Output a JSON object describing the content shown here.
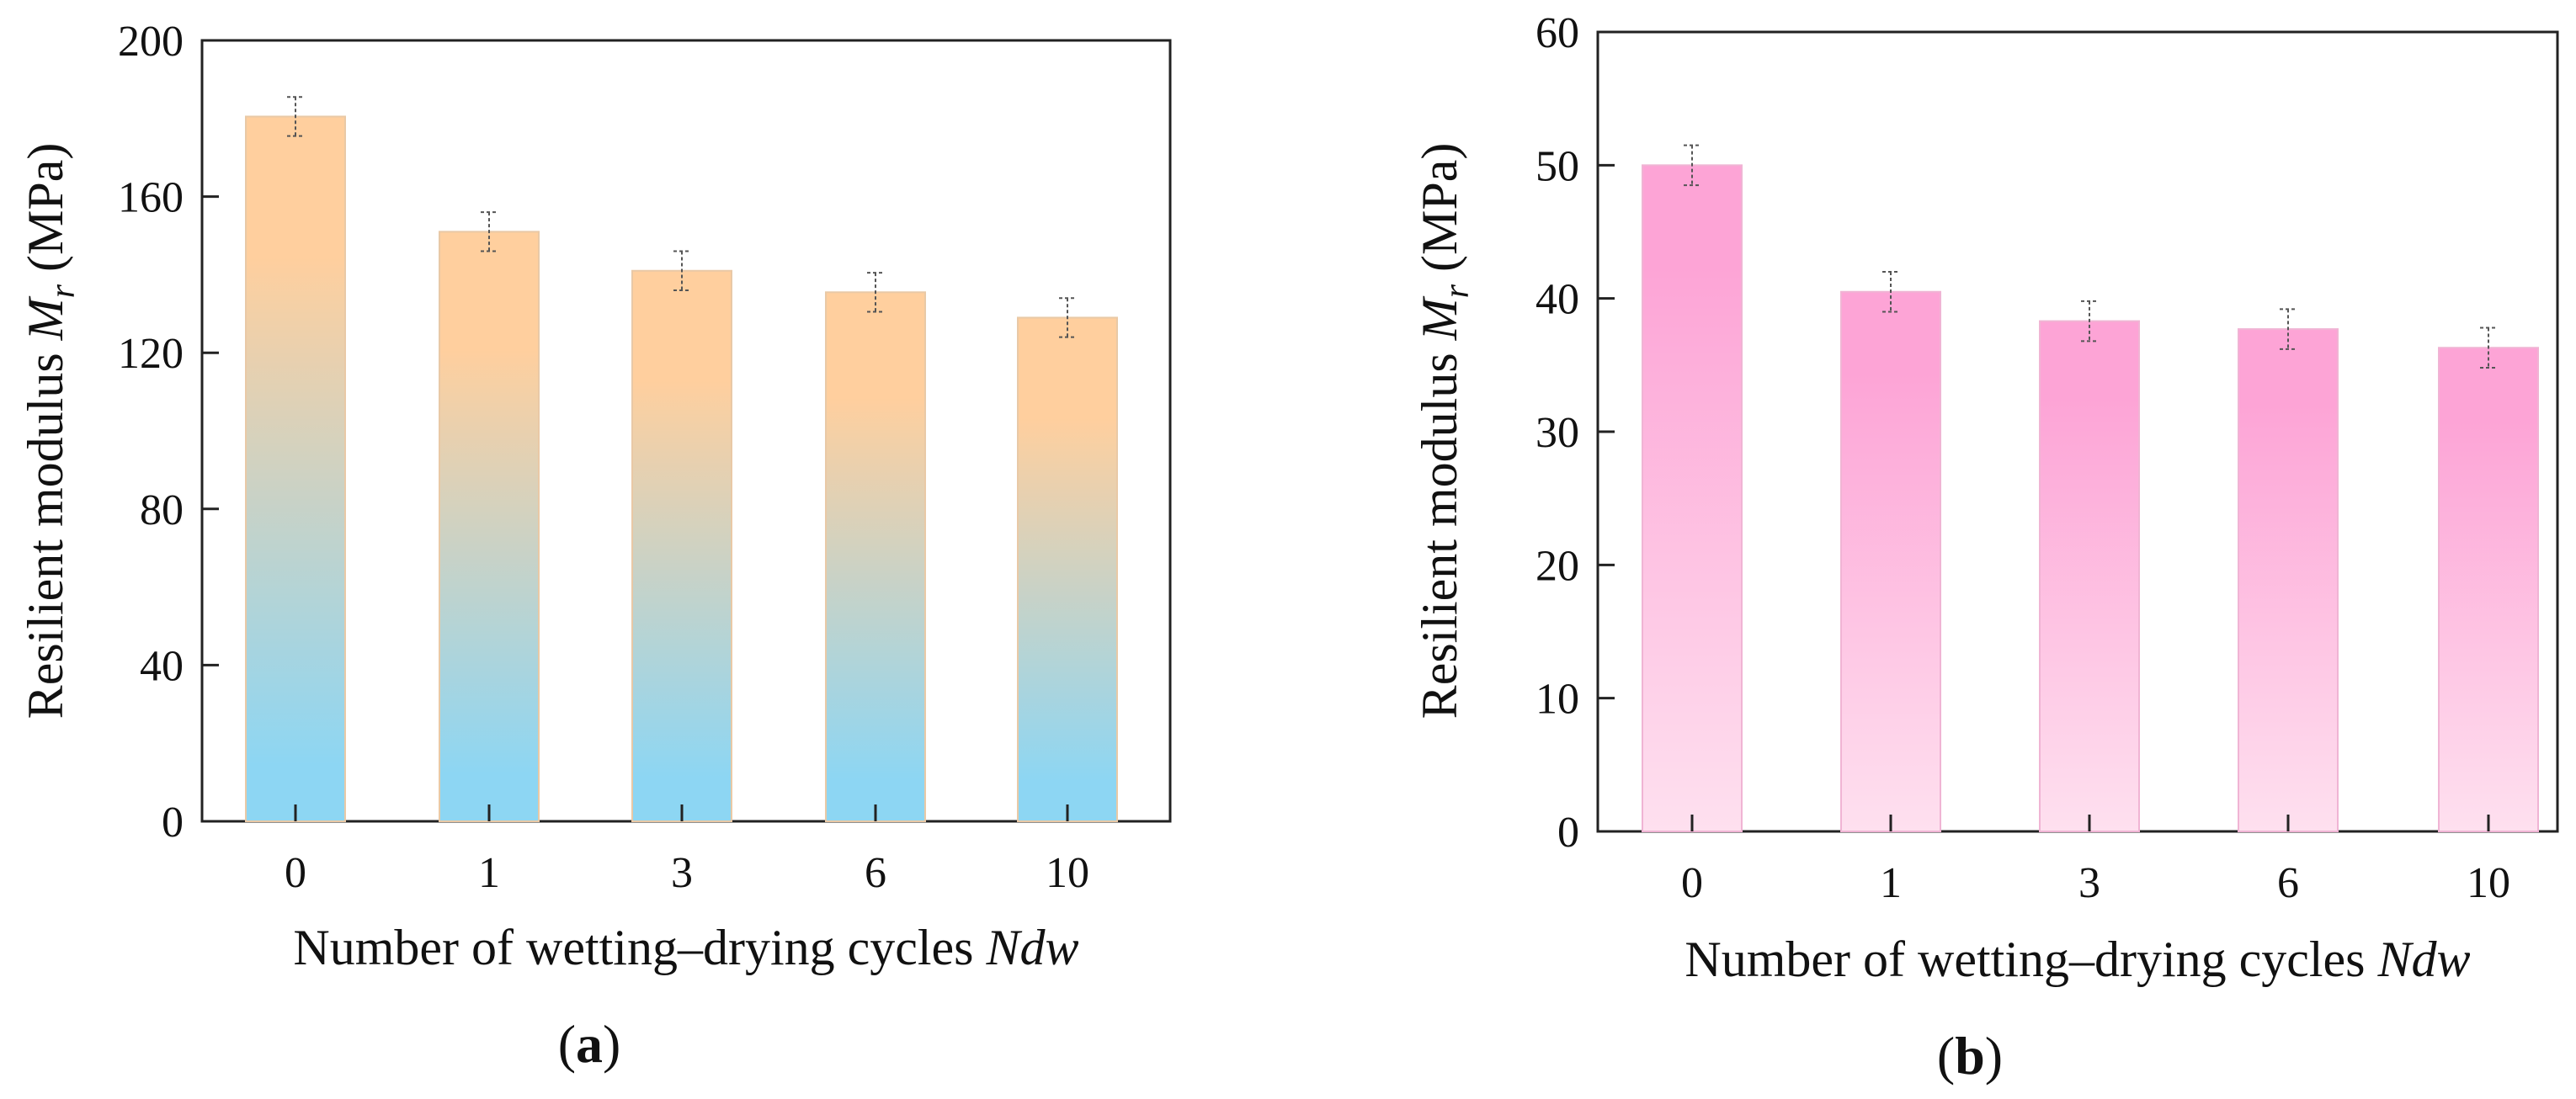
{
  "chart_data": [
    {
      "type": "bar",
      "panel_label": "a",
      "categories": [
        "0",
        "1",
        "3",
        "6",
        "10"
      ],
      "values": [
        180.5,
        151,
        141,
        135.5,
        129
      ],
      "error": [
        5,
        5,
        5,
        5,
        5
      ],
      "ylim": [
        0,
        200
      ],
      "yticks": [
        0,
        40,
        80,
        120,
        160,
        200
      ],
      "ylabel_prefix": "Resilient modulus ",
      "ylabel_symbol": "M",
      "ylabel_subscript": "r",
      "ylabel_unit": " (MPa)",
      "xlabel": "Number of wetting–drying cycles ",
      "xlabel_symbol": "Ndw",
      "gradient": {
        "top": "#ffcf9e",
        "bottom": "#8dd6f3"
      }
    },
    {
      "type": "bar",
      "panel_label": "b",
      "categories": [
        "0",
        "1",
        "3",
        "6",
        "10"
      ],
      "values": [
        50,
        40.5,
        38.3,
        37.7,
        36.3
      ],
      "error": [
        1.5,
        1.5,
        1.5,
        1.5,
        1.5
      ],
      "ylim": [
        0,
        60
      ],
      "yticks": [
        0,
        10,
        20,
        30,
        40,
        50,
        60
      ],
      "ylabel_prefix": "Resilient modulus ",
      "ylabel_symbol": "M",
      "ylabel_subscript": "r",
      "ylabel_unit": " (MPa)",
      "xlabel": "Number of wetting–drying cycles ",
      "xlabel_symbol": "Ndw",
      "gradient": {
        "top": "#fda4d6",
        "bottom": "#fee0ef"
      }
    }
  ]
}
